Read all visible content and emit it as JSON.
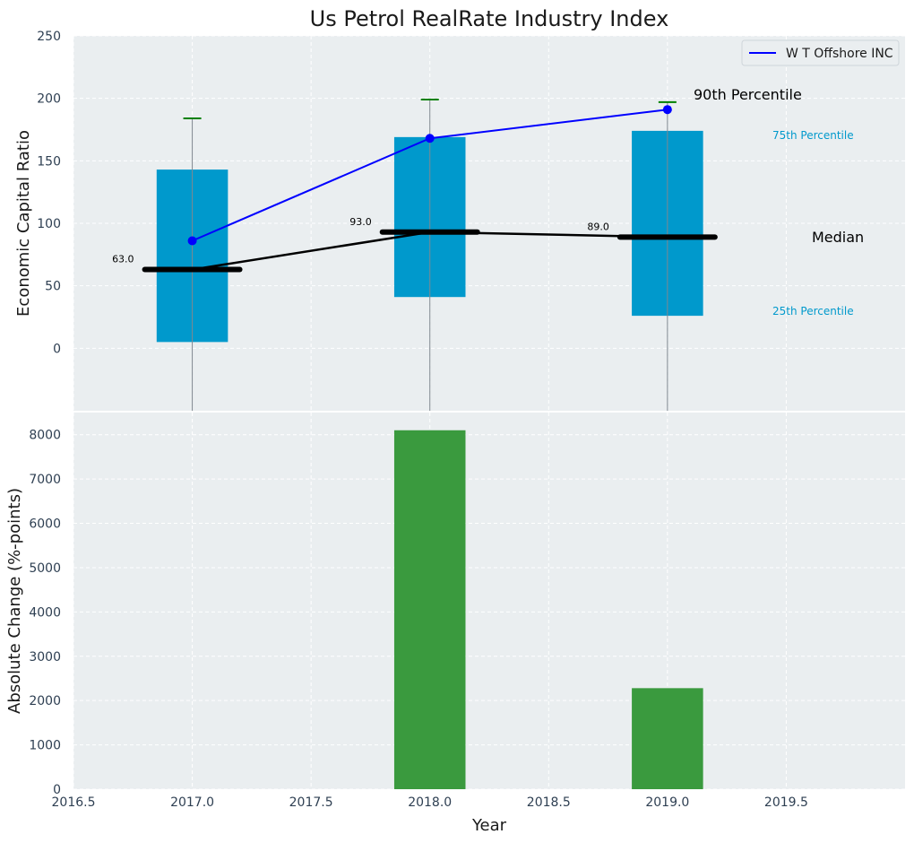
{
  "chart_data": [
    {
      "type": "box",
      "title": "Us Petrol RealRate Industry Index",
      "ylabel": "Economic Capital Ratio",
      "xlabel": "",
      "ylim": [
        -50,
        250
      ],
      "yticks": [
        0,
        50,
        100,
        150,
        200,
        250
      ],
      "grid": true,
      "legend_position": "top-right",
      "categories": [
        2017,
        2018,
        2019
      ],
      "boxes": [
        {
          "x": 2017,
          "p25": 5,
          "median": 63,
          "p75": 143,
          "p90": 184,
          "company": 86
        },
        {
          "x": 2018,
          "p25": 41,
          "median": 93,
          "p75": 169,
          "p90": 199,
          "company": 168
        },
        {
          "x": 2019,
          "p25": 26,
          "median": 89,
          "p75": 174,
          "p90": 197,
          "company": 191
        }
      ],
      "median_labels": [
        "63.0",
        "93.0",
        "89.0"
      ],
      "series": [
        {
          "name": "W T Offshore INC",
          "color": "#0000ff",
          "x": [
            2017,
            2018,
            2019
          ],
          "values": [
            86,
            168,
            191
          ]
        }
      ],
      "annotations": {
        "p90": "90th Percentile",
        "p75": "75th Percentile",
        "median": "Median",
        "p25": "25th Percentile"
      },
      "colors": {
        "box": "#0099cc",
        "median": "#000000",
        "whisker_cap": "#008000",
        "plot_bg": "#eaeef0",
        "tick_text": "#2e3f52"
      }
    },
    {
      "type": "bar",
      "ylabel": "Absolute Change (%-points)",
      "xlabel": "Year",
      "xlim": [
        2016.5,
        2020
      ],
      "xticks": [
        2016.5,
        2017.0,
        2017.5,
        2018.0,
        2018.5,
        2019.0,
        2019.5
      ],
      "xtick_labels": [
        "2016.5",
        "2017.0",
        "2017.5",
        "2018.0",
        "2018.5",
        "2019.0",
        "2019.5"
      ],
      "ylim": [
        0,
        8500
      ],
      "yticks": [
        0,
        1000,
        2000,
        3000,
        4000,
        5000,
        6000,
        7000,
        8000
      ],
      "grid": true,
      "x": [
        2018,
        2019
      ],
      "values": [
        8100,
        2280
      ],
      "color": "#3a9a3e"
    }
  ]
}
